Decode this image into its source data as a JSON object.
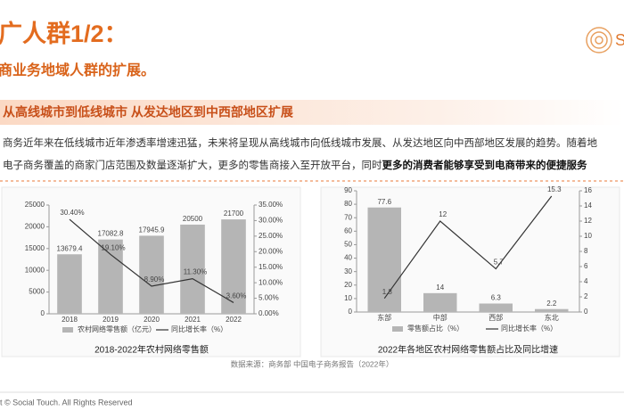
{
  "header": {
    "title": "广人群1/2：",
    "subtitle": "商业务地域人群的扩展。",
    "logo_text": "S",
    "banner": "从高线城市到低线城市  从发达地区到中西部地区扩展"
  },
  "paragraph": [
    {
      "text": "商务近年来在低线城市近年渗透率增速迅猛，未来将呈现从高线城市向低线城市发展、从发达地区向中西部地区发展的趋势。随着地"
    },
    {
      "text": "电子商务覆盖的商家门店范围及数量逐渐扩大，更多的零售商接入至开放平台，同时",
      "bold": "更多的消费者能够享受到电商带来的便捷服务"
    }
  ],
  "chart_data": [
    {
      "type": "combo",
      "title": "2018-2022年农村网络零售额",
      "categories": [
        "2018",
        "2019",
        "2020",
        "2021",
        "2022"
      ],
      "series": [
        {
          "name": "农村网络零售额（亿元）",
          "type": "bar",
          "color": "#b5b5b5",
          "values": [
            13679.4,
            17082.8,
            17945.9,
            20500,
            21700
          ]
        },
        {
          "name": "同比增长率（%）",
          "type": "line",
          "axis": "y2",
          "color": "#333333",
          "values": [
            30.4,
            19.1,
            8.9,
            11.3,
            3.6
          ],
          "value_labels": [
            "30.40%",
            "19.10%",
            "8.90%",
            "11.30%",
            "3.60%"
          ]
        }
      ],
      "ylim": [
        0,
        25000
      ],
      "yticks": [
        0,
        5000,
        10000,
        15000,
        20000,
        25000
      ],
      "y2lim": [
        0,
        35
      ],
      "y2ticks": [
        {
          "value": 0,
          "label": "0.00%"
        },
        {
          "value": 5,
          "label": "5.00%"
        },
        {
          "value": 10,
          "label": "10.00%"
        },
        {
          "value": 15,
          "label": "15.00%"
        },
        {
          "value": 20,
          "label": "20.00%"
        },
        {
          "value": 25,
          "label": "25.00%"
        },
        {
          "value": 30,
          "label": "30.00%"
        },
        {
          "value": 35,
          "label": "35.00%"
        }
      ]
    },
    {
      "type": "combo",
      "title": "2022年各地区农村网络零售额占比及同比增速",
      "categories": [
        "东部",
        "中部",
        "西部",
        "东北"
      ],
      "series": [
        {
          "name": "零售额占比（%）",
          "type": "bar",
          "color": "#b5b5b5",
          "values": [
            77.6,
            14,
            6.3,
            2.2
          ]
        },
        {
          "name": "同比增长率（%）",
          "type": "line",
          "axis": "y2",
          "color": "#333333",
          "values": [
            1.8,
            12,
            5.7,
            15.3
          ]
        }
      ],
      "ylim": [
        0,
        90
      ],
      "yticks": [
        0,
        10,
        20,
        30,
        40,
        50,
        60,
        70,
        80,
        90
      ],
      "y2lim": [
        0,
        16
      ],
      "y2ticks": [
        0,
        2,
        4,
        6,
        8,
        10,
        12,
        14,
        16
      ]
    }
  ],
  "source": "数据来源：商务部 中国电子商务报告（2022年）",
  "footer": "t © Social Touch. All Rights Reserved"
}
